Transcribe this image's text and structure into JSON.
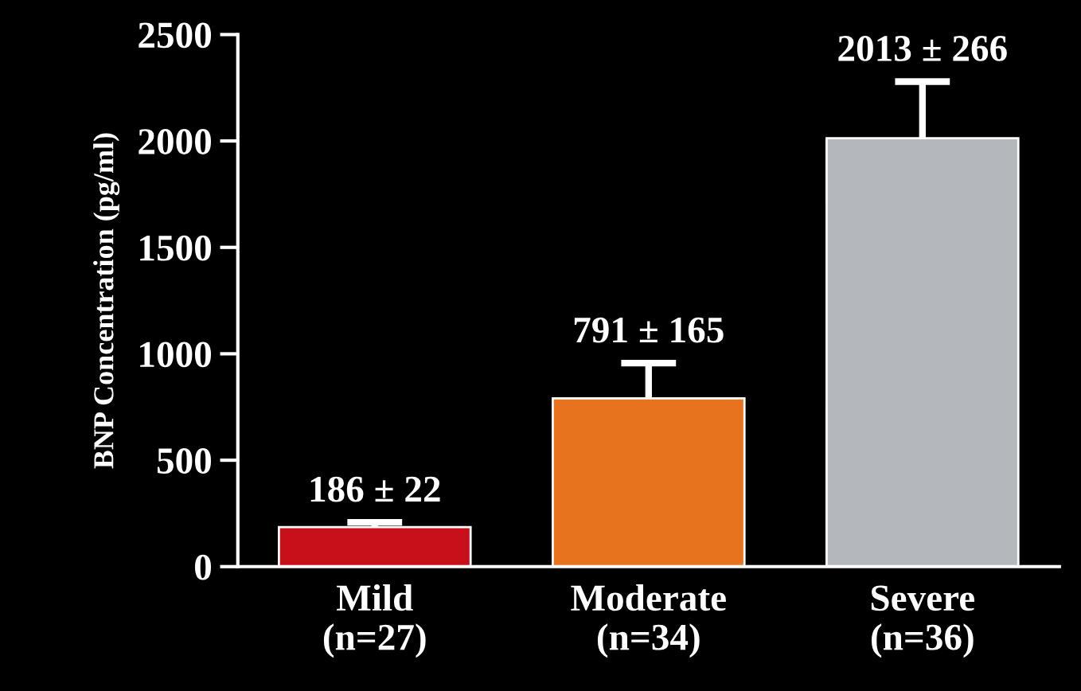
{
  "chart_data": {
    "type": "bar",
    "ylabel": "BNP Concentration (pg/ml)",
    "categories": [
      "Mild\n(n=27)",
      "Moderate\n(n=34)",
      "Severe\n(n=36)"
    ],
    "values": [
      186,
      791,
      2013
    ],
    "colors": [
      "#c8101a",
      "#e8731f",
      "#b4b8bc"
    ],
    "errors": [
      [
        186,
        208
      ],
      [
        791,
        956
      ],
      [
        2013,
        2279
      ]
    ],
    "value_labels": [
      "186 ± 22",
      "791 ± 165",
      "2013 ± 266"
    ],
    "ylim": [
      0,
      2500
    ],
    "yticks": [
      0,
      500,
      1000,
      1500,
      2000,
      2500
    ],
    "grid": false,
    "legend": false
  }
}
